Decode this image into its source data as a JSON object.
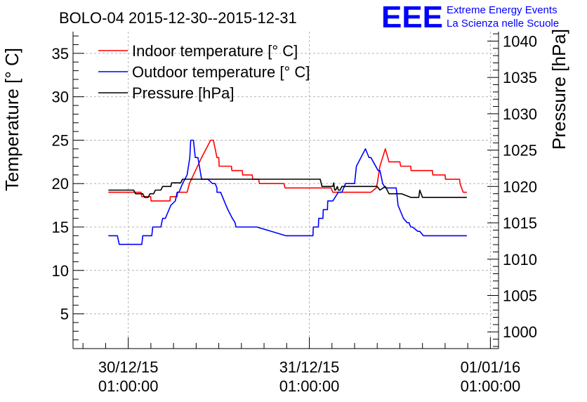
{
  "colors": {
    "indoor": "#ff0000",
    "outdoor": "#0000ff",
    "pressure": "#000000",
    "logo": "#0000ff",
    "grid": "#b4b4b4"
  },
  "logo": {
    "mark": "EEE",
    "line1": "Extreme Energy Events",
    "line2": "La Scienza nelle Scuole"
  },
  "chart_data": {
    "type": "line",
    "title": "BOLO-04 2015-12-30--2015-12-31",
    "ylabel": "Temperature [° C]",
    "y2label": "Pressure [hPa]",
    "xlabel": "",
    "ylim": [
      1,
      37.5
    ],
    "y2lim": [
      997.7,
      1041.3
    ],
    "xlim": [
      -0.305,
      2.045
    ],
    "grid": true,
    "legend_position": "top-left",
    "y_ticks": [
      5,
      10,
      15,
      20,
      25,
      30,
      35
    ],
    "y2_ticks": [
      1000,
      1005,
      1010,
      1015,
      1020,
      1025,
      1030,
      1035,
      1040
    ],
    "x_ticks": [
      {
        "x": 0,
        "line1": "30/12/15",
        "line2": "01:00:00"
      },
      {
        "x": 1,
        "line1": "31/12/15",
        "line2": "01:00:00"
      },
      {
        "x": 2,
        "line1": "01/01/16",
        "line2": "01:00:00"
      }
    ],
    "x_units": "days since 30/12/15 01:00:00",
    "series": [
      {
        "name": "Indoor temperature [° C]",
        "axis": "left",
        "x": [
          -0.11,
          0.07,
          0.075,
          0.124,
          0.126,
          0.23,
          0.232,
          0.27,
          0.272,
          0.325,
          0.338,
          0.36,
          0.405,
          0.455,
          0.47,
          0.49,
          0.492,
          0.5,
          0.502,
          0.57,
          0.572,
          0.63,
          0.632,
          0.685,
          0.687,
          0.72,
          0.725,
          0.745,
          0.78,
          0.79,
          0.86,
          0.866,
          1.12,
          1.13,
          1.14,
          1.18,
          1.28,
          1.34,
          1.37,
          1.375,
          1.39,
          1.42,
          1.44,
          1.5,
          1.505,
          1.51,
          1.56,
          1.562,
          1.68,
          1.682,
          1.75,
          1.752,
          1.83,
          1.832,
          1.85,
          1.87
        ],
        "values": [
          19,
          19,
          18.5,
          18.5,
          18,
          18,
          18.5,
          18.5,
          19,
          19,
          20,
          21,
          23,
          25,
          25,
          23,
          23,
          23,
          22,
          22,
          21.5,
          21.5,
          21,
          21,
          20.5,
          20.5,
          20,
          20,
          20,
          20,
          20,
          19.5,
          19.5,
          19,
          19,
          19,
          19,
          19,
          19.5,
          20,
          22,
          24,
          22.5,
          22.5,
          22,
          22,
          22,
          21.5,
          21.5,
          21,
          21,
          20.5,
          20.5,
          20,
          19,
          19
        ]
      },
      {
        "name": "Outdoor temperature [° C]",
        "axis": "left",
        "x": [
          -0.11,
          -0.06,
          -0.05,
          0.04,
          0.05,
          0.075,
          0.08,
          0.13,
          0.135,
          0.18,
          0.19,
          0.205,
          0.215,
          0.225,
          0.235,
          0.26,
          0.27,
          0.28,
          0.3,
          0.325,
          0.34,
          0.345,
          0.36,
          0.37,
          0.385,
          0.405,
          0.44,
          0.465,
          0.48,
          0.49,
          0.49,
          0.5,
          0.51,
          0.53,
          0.55,
          0.575,
          0.59,
          0.595,
          0.64,
          0.655,
          0.69,
          0.7,
          0.71,
          0.87,
          0.875,
          0.88,
          0.985,
          0.99,
          1.02,
          1.022,
          1.05,
          1.052,
          1.075,
          1.077,
          1.1,
          1.102,
          1.13,
          1.16,
          1.18,
          1.2,
          1.21,
          1.25,
          1.26,
          1.31,
          1.32,
          1.33,
          1.34,
          1.38,
          1.39,
          1.4,
          1.405,
          1.42,
          1.46,
          1.47,
          1.48,
          1.49,
          1.51,
          1.52,
          1.54,
          1.55,
          1.56,
          1.57,
          1.6,
          1.61,
          1.63,
          1.66,
          1.67,
          1.7,
          1.73,
          1.76,
          1.77,
          1.79,
          1.83,
          1.84,
          1.87
        ],
        "values": [
          14,
          14,
          13,
          13,
          13,
          13,
          14,
          14,
          15,
          15,
          16,
          16,
          16.5,
          17,
          17.5,
          18,
          19,
          19,
          20,
          21,
          23,
          25,
          25,
          23,
          23,
          20.5,
          20.5,
          20,
          20,
          19.5,
          19,
          19,
          19,
          18,
          17,
          16,
          15.5,
          15,
          15,
          15,
          15,
          15,
          15,
          14,
          14,
          14,
          14,
          14,
          14,
          15,
          15,
          16,
          16,
          17,
          17,
          18,
          18,
          19,
          19,
          20,
          20,
          20,
          22,
          24,
          23.5,
          23,
          23,
          21.5,
          21.5,
          20.5,
          20,
          19.5,
          19.5,
          19.5,
          19.5,
          17.5,
          16.5,
          16,
          15.5,
          15.5,
          15,
          15,
          14.5,
          14.5,
          14,
          14,
          14,
          14,
          14,
          14,
          14,
          14,
          14,
          14,
          14
        ]
      },
      {
        "name": "Pressure [hPa]",
        "axis": "right",
        "x": [
          -0.11,
          0.03,
          0.04,
          0.08,
          0.09,
          0.11,
          0.12,
          0.14,
          0.15,
          0.18,
          0.19,
          0.235,
          0.24,
          0.29,
          0.3,
          0.34,
          0.35,
          0.58,
          0.585,
          0.62,
          0.63,
          1.06,
          1.07,
          1.13,
          1.135,
          1.14,
          1.145,
          1.155,
          1.16,
          1.17,
          1.18,
          1.2,
          1.21,
          1.25,
          1.26,
          1.33,
          1.34,
          1.37,
          1.375,
          1.39,
          1.42,
          1.44,
          1.46,
          1.5,
          1.51,
          1.56,
          1.57,
          1.6,
          1.605,
          1.61,
          1.625,
          1.64,
          1.65,
          1.87
        ],
        "values": [
          1019.5,
          1019.5,
          1019,
          1019,
          1018.5,
          1018.5,
          1019,
          1019,
          1019.5,
          1019.5,
          1020,
          1020,
          1020.5,
          1020.5,
          1021,
          1021,
          1021,
          1021,
          1021,
          1021,
          1021,
          1021,
          1020,
          1020,
          1020.5,
          1019.5,
          1019.5,
          1020,
          1019.5,
          1019.5,
          1020,
          1020,
          1020,
          1020,
          1020,
          1020,
          1020,
          1020,
          1020,
          1019.5,
          1020,
          1019,
          1019,
          1019,
          1019,
          1018.5,
          1018.5,
          1018.5,
          1018.5,
          1019.5,
          1018.5,
          1018.5,
          1018.5,
          1018.5
        ]
      }
    ]
  }
}
